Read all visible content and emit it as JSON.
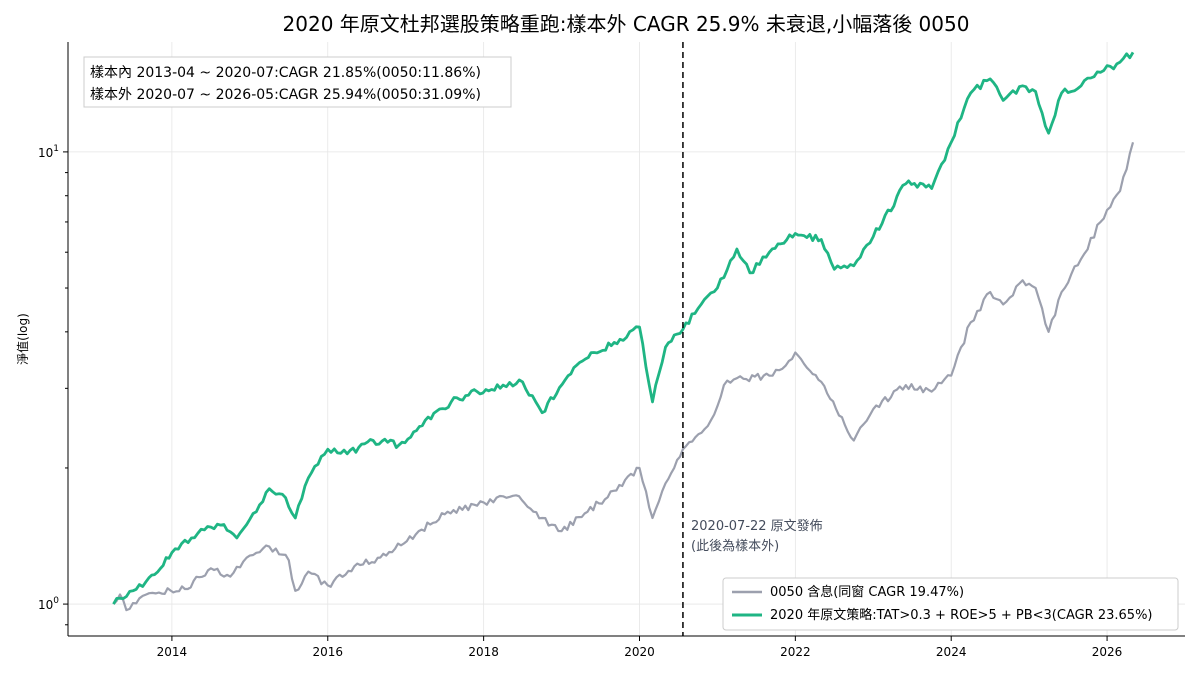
{
  "chart_data": {
    "type": "line",
    "title": "2020 年原文杜邦選股策略重跑:樣本外 CAGR 25.9% 未衰退,小幅落後 0050",
    "xlabel": "",
    "ylabel": "淨值(log)",
    "yscale": "log",
    "xlim": [
      "2012-09",
      "2027-01"
    ],
    "ylim": [
      0.85,
      17.5
    ],
    "x_ticks": [
      "2014",
      "2016",
      "2018",
      "2020",
      "2022",
      "2024",
      "2026"
    ],
    "y_ticks": [
      {
        "value": 1,
        "base": "10",
        "exp": "0"
      },
      {
        "value": 10,
        "base": "10",
        "exp": "1"
      }
    ],
    "grid": true,
    "legend_position": "lower-right",
    "split_line": {
      "x": "2020-07-22",
      "style": "dashed",
      "color": "#000000"
    },
    "annotation": {
      "x": "2020-07-22",
      "lines": [
        "2020-07-22 原文發佈",
        "(此後為樣本外)"
      ]
    },
    "info_box": [
      "樣本內 2013-04 ~ 2020-07:CAGR 21.85%(0050:11.86%)",
      "樣本外 2020-07 ~ 2026-05:CAGR 25.94%(0050:31.09%)"
    ],
    "series": [
      {
        "name": "0050 含息(同窗 CAGR 19.47%)",
        "color": "#9ca0ae",
        "points": [
          [
            "2013-04",
            1.0
          ],
          [
            "2013-05",
            1.05
          ],
          [
            "2013-06",
            0.97
          ],
          [
            "2013-08",
            1.03
          ],
          [
            "2013-11",
            1.06
          ],
          [
            "2014-03",
            1.08
          ],
          [
            "2014-07",
            1.2
          ],
          [
            "2014-10",
            1.15
          ],
          [
            "2015-01",
            1.28
          ],
          [
            "2015-04",
            1.34
          ],
          [
            "2015-07",
            1.25
          ],
          [
            "2015-08",
            1.07
          ],
          [
            "2015-10",
            1.18
          ],
          [
            "2016-01",
            1.1
          ],
          [
            "2016-06",
            1.22
          ],
          [
            "2016-10",
            1.28
          ],
          [
            "2017-03",
            1.45
          ],
          [
            "2017-07",
            1.58
          ],
          [
            "2017-12",
            1.65
          ],
          [
            "2018-03",
            1.72
          ],
          [
            "2018-06",
            1.74
          ],
          [
            "2018-10",
            1.55
          ],
          [
            "2019-01",
            1.45
          ],
          [
            "2019-05",
            1.6
          ],
          [
            "2019-09",
            1.78
          ],
          [
            "2020-01",
            2.0
          ],
          [
            "2020-03",
            1.55
          ],
          [
            "2020-05",
            1.85
          ],
          [
            "2020-07-22",
            2.2
          ],
          [
            "2020-12",
            2.55
          ],
          [
            "2021-02",
            3.05
          ],
          [
            "2021-05",
            3.15
          ],
          [
            "2021-09",
            3.2
          ],
          [
            "2021-12",
            3.45
          ],
          [
            "2022-01",
            3.6
          ],
          [
            "2022-05",
            3.1
          ],
          [
            "2022-10",
            2.3
          ],
          [
            "2023-01",
            2.7
          ],
          [
            "2023-06",
            3.05
          ],
          [
            "2023-10",
            2.95
          ],
          [
            "2024-01",
            3.2
          ],
          [
            "2024-04",
            4.2
          ],
          [
            "2024-07",
            4.9
          ],
          [
            "2024-09",
            4.6
          ],
          [
            "2024-12",
            5.2
          ],
          [
            "2025-02",
            5.0
          ],
          [
            "2025-04",
            4.0
          ],
          [
            "2025-06",
            4.9
          ],
          [
            "2025-09",
            5.8
          ],
          [
            "2025-12",
            7.0
          ],
          [
            "2026-03",
            8.2
          ],
          [
            "2026-05",
            10.5
          ]
        ]
      },
      {
        "name": "2020 年原文策略:TAT>0.3 + ROE>5 + PB<3(CAGR 23.65%)",
        "color": "#1fb584",
        "points": [
          [
            "2013-04",
            1.0
          ],
          [
            "2013-05",
            1.03
          ],
          [
            "2013-07",
            1.07
          ],
          [
            "2013-09",
            1.12
          ],
          [
            "2014-01",
            1.3
          ],
          [
            "2014-04",
            1.4
          ],
          [
            "2014-07",
            1.48
          ],
          [
            "2014-09",
            1.5
          ],
          [
            "2014-11",
            1.4
          ],
          [
            "2015-02",
            1.6
          ],
          [
            "2015-04",
            1.8
          ],
          [
            "2015-06",
            1.75
          ],
          [
            "2015-08",
            1.55
          ],
          [
            "2015-10",
            1.9
          ],
          [
            "2016-01",
            2.2
          ],
          [
            "2016-04",
            2.15
          ],
          [
            "2016-08",
            2.3
          ],
          [
            "2016-12",
            2.25
          ],
          [
            "2017-04",
            2.55
          ],
          [
            "2017-08",
            2.8
          ],
          [
            "2017-12",
            2.95
          ],
          [
            "2018-04",
            3.05
          ],
          [
            "2018-07",
            3.1
          ],
          [
            "2018-10",
            2.65
          ],
          [
            "2019-02",
            3.2
          ],
          [
            "2019-06",
            3.6
          ],
          [
            "2019-10",
            3.85
          ],
          [
            "2020-01",
            4.1
          ],
          [
            "2020-03",
            2.8
          ],
          [
            "2020-05",
            3.7
          ],
          [
            "2020-07-22",
            4.05
          ],
          [
            "2020-10",
            4.5
          ],
          [
            "2021-01",
            5.0
          ],
          [
            "2021-04",
            6.1
          ],
          [
            "2021-06",
            5.4
          ],
          [
            "2021-09",
            6.0
          ],
          [
            "2022-01",
            6.6
          ],
          [
            "2022-05",
            6.4
          ],
          [
            "2022-07",
            5.5
          ],
          [
            "2022-10",
            5.6
          ],
          [
            "2023-01",
            6.5
          ],
          [
            "2023-06",
            8.5
          ],
          [
            "2023-10",
            8.3
          ],
          [
            "2024-01",
            10.5
          ],
          [
            "2024-04",
            13.5
          ],
          [
            "2024-07",
            14.5
          ],
          [
            "2024-09",
            13.0
          ],
          [
            "2024-12",
            14.0
          ],
          [
            "2025-02",
            13.6
          ],
          [
            "2025-04",
            11.0
          ],
          [
            "2025-06",
            13.5
          ],
          [
            "2025-09",
            14.0
          ],
          [
            "2025-12",
            15.0
          ],
          [
            "2026-03",
            15.8
          ],
          [
            "2026-05",
            16.6
          ]
        ]
      }
    ]
  }
}
